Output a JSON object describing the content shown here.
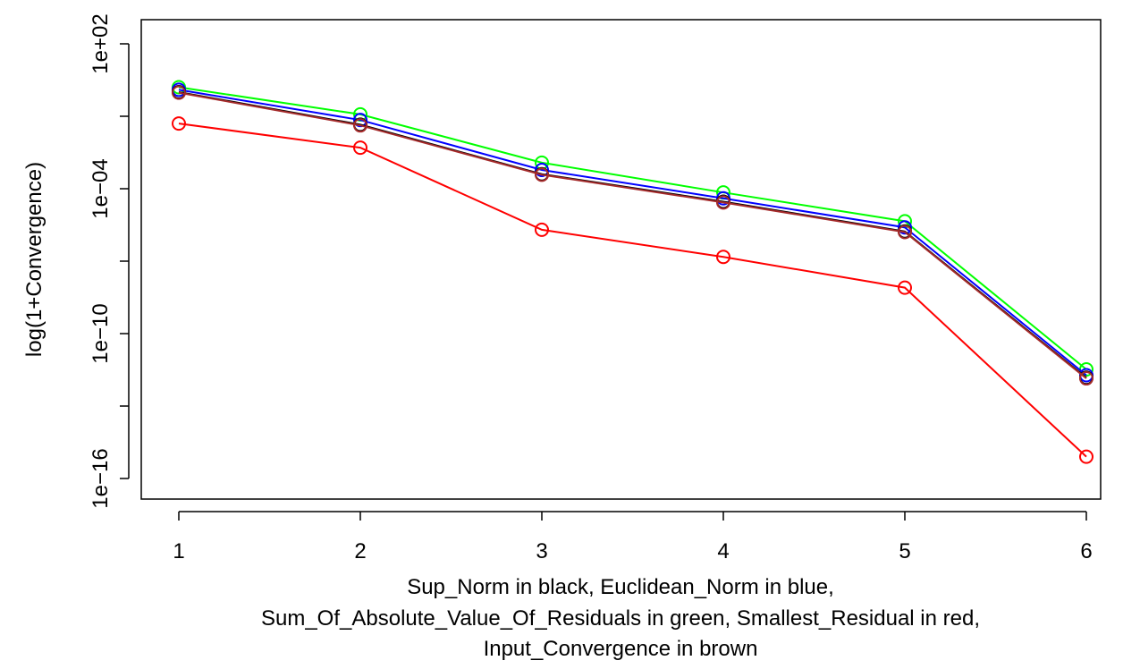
{
  "chart_data": {
    "type": "line",
    "x": [
      1,
      2,
      3,
      4,
      5,
      6
    ],
    "ylabel": "log(1+Convergence)",
    "y_scale": "log",
    "ylim": [
      1e-16,
      100.0
    ],
    "xlim": [
      1,
      6
    ],
    "xticks": [
      "1",
      "2",
      "3",
      "4",
      "5",
      "6"
    ],
    "yticks": [
      {
        "value": 1e-16,
        "label": "1e−16"
      },
      {
        "value": 1e-10,
        "label": "1e−10"
      },
      {
        "value": 0.0001,
        "label": "1e−04"
      },
      {
        "value": 100.0,
        "label": "1e+02"
      }
    ],
    "yticks_minor": [
      1e-13,
      1e-07,
      0.1
    ],
    "grid": false,
    "legend": "none",
    "xlabel_lines": [
      "Sup_Norm in black, Euclidean_Norm in blue,",
      "Sum_Of_Absolute_Value_Of_Residuals in green, Smallest_Residual in red,",
      "Input_Convergence in brown"
    ],
    "series": [
      {
        "color": "#00ff00",
        "values": [
          1.6,
          0.12,
          0.0012,
          7e-05,
          4.5e-06,
          3.3e-12
        ]
      },
      {
        "color": "#0000ff",
        "values": [
          1.25,
          0.07,
          0.0006,
          4e-05,
          2.5e-06,
          1.9e-12
        ]
      },
      {
        "color": "#000000",
        "values": [
          1.0,
          0.045,
          0.0004,
          2.9e-05,
          1.7e-06,
          1.5e-12
        ]
      },
      {
        "color": "#a52a2a",
        "values": [
          0.95,
          0.042,
          0.00038,
          2.7e-05,
          1.6e-06,
          1.4e-12
        ]
      },
      {
        "color": "#ff0000",
        "values": [
          0.05,
          0.005,
          2e-06,
          1.5e-07,
          8e-09,
          8e-16
        ]
      }
    ]
  }
}
